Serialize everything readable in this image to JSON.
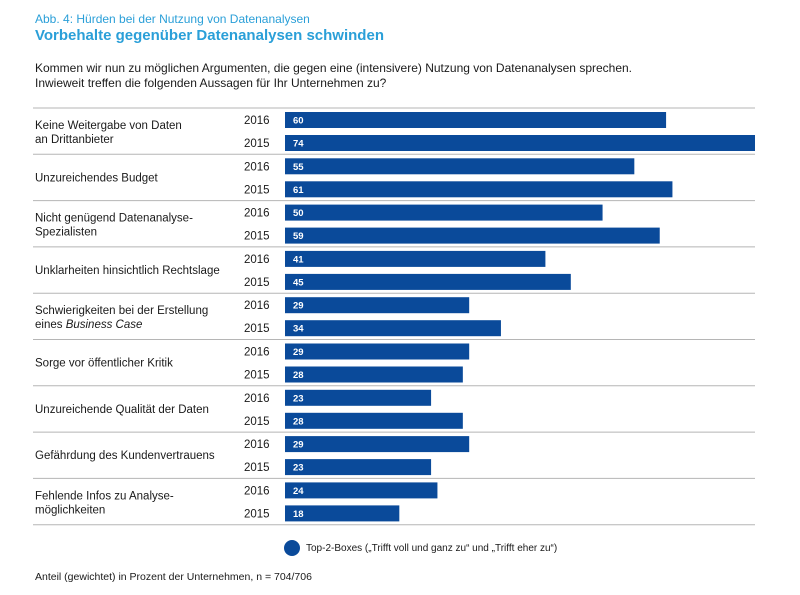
{
  "header": {
    "figure_label": "Abb. 4: Hürden bei der Nutzung von Datenanalysen",
    "title": "Vorbehalte gegenüber Datenanalysen schwinden",
    "question_line1": "Kommen wir nun zu möglichen Argumenten, die gegen eine (intensivere) Nutzung von Datenanalysen sprechen.",
    "question_line2": "Inwieweit treffen die folgenden Aussagen für Ihr Unternehmen zu?"
  },
  "legend": {
    "label": "Top-2-Boxes („Trifft voll und ganz zu“ und „Trifft eher zu“)"
  },
  "footnote": "Anteil (gewichtet) in Prozent der Unternehmen, n = 704/706",
  "colors": {
    "bar": "#0a4a9a",
    "title": "#2a9fd8",
    "divider": "#b5b5b5"
  },
  "chart_data": {
    "type": "bar",
    "orientation": "horizontal",
    "title": "Vorbehalte gegenüber Datenanalysen schwinden",
    "xlabel": "Anteil (gewichtet) in Prozent der Unternehmen",
    "ylabel": "",
    "xlim": [
      0,
      74
    ],
    "categories": [
      {
        "lines": [
          "Keine Weitergabe von Daten",
          "an Drittanbieter"
        ]
      },
      {
        "lines": [
          "Unzureichendes Budget"
        ]
      },
      {
        "lines": [
          "Nicht genügend Datenanalyse-",
          "Spezialisten"
        ]
      },
      {
        "lines": [
          "Unklarheiten hinsichtlich Rechtslage"
        ]
      },
      {
        "lines": [
          "Schwierigkeiten bei der Erstellung",
          "eines Business Case"
        ],
        "italic_word": "Business Case"
      },
      {
        "lines": [
          "Sorge vor öffentlicher Kritik"
        ]
      },
      {
        "lines": [
          "Unzureichende Qualität der Daten"
        ]
      },
      {
        "lines": [
          "Gefährdung des Kundenvertrauens"
        ]
      },
      {
        "lines": [
          "Fehlende Infos zu Analyse-",
          "möglichkeiten"
        ]
      }
    ],
    "series": [
      {
        "name": "2016",
        "values": [
          60,
          55,
          50,
          41,
          29,
          29,
          23,
          29,
          24
        ]
      },
      {
        "name": "2015",
        "values": [
          74,
          61,
          59,
          45,
          34,
          28,
          28,
          23,
          18
        ]
      }
    ],
    "legend": "Top-2-Boxes („Trifft voll und ganz zu“ und „Trifft eher zu“)"
  }
}
